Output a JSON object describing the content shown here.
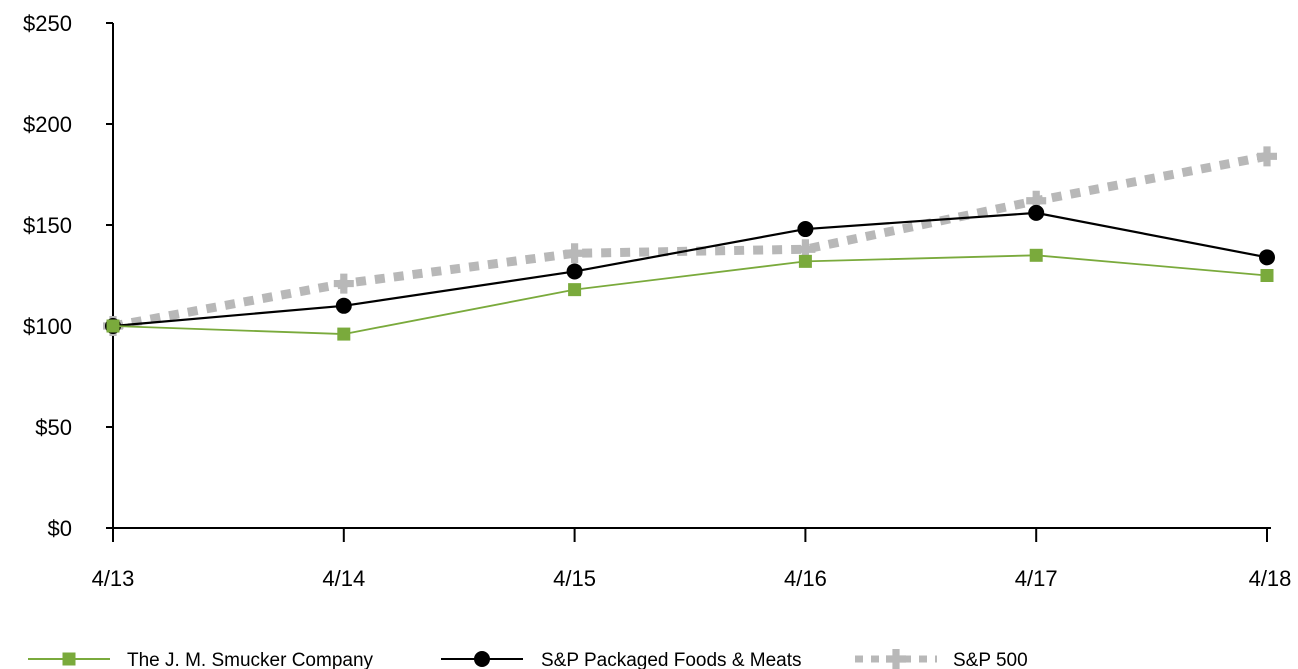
{
  "chart_data": {
    "type": "line",
    "title": "",
    "xlabel": "",
    "ylabel": "",
    "categories": [
      "4/13",
      "4/14",
      "4/15",
      "4/16",
      "4/17",
      "4/18"
    ],
    "ylim": [
      0,
      250
    ],
    "y_ticks": [
      0,
      50,
      100,
      150,
      200,
      250
    ],
    "y_tick_labels": [
      "$0",
      "$50",
      "$100",
      "$150",
      "$200",
      "$250"
    ],
    "grid": false,
    "legend_position": "bottom",
    "series": [
      {
        "name": "The J. M. Smucker Company",
        "values": [
          100,
          96,
          118,
          132,
          135,
          125
        ],
        "color": "#7aaa3c",
        "marker": "square",
        "line_style": "solid"
      },
      {
        "name": "S&P Packaged Foods & Meats",
        "values": [
          100,
          110,
          127,
          148,
          156,
          134
        ],
        "color": "#000000",
        "marker": "circle",
        "line_style": "solid"
      },
      {
        "name": "S&P 500",
        "values": [
          100,
          121,
          136,
          138,
          162,
          184
        ],
        "color": "#b8b8b8",
        "marker": "cross",
        "line_style": "dashed"
      }
    ]
  }
}
